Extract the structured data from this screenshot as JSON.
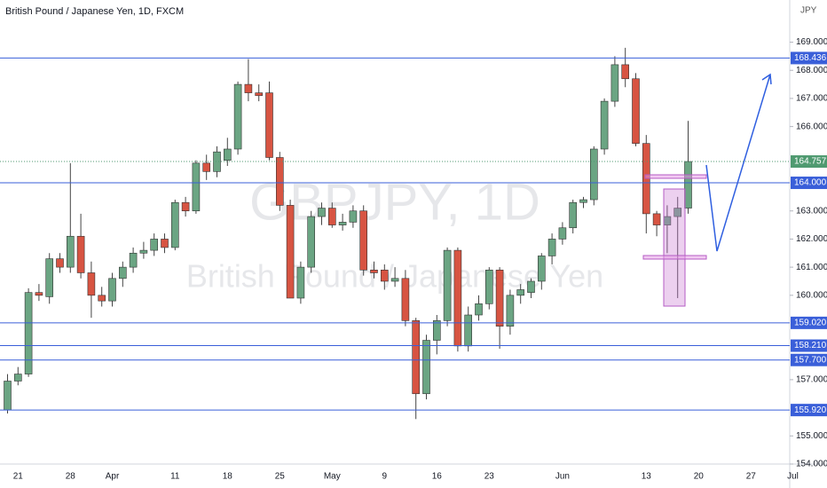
{
  "chart_data": {
    "type": "candlestick",
    "title": "British Pound / Japanese Yen, 1D, FXCM",
    "currency": "JPY",
    "watermark": "GBPJPY, 1D",
    "watermark_subtitle": "British Pound / Japanese Yen",
    "up_color": "#6ba583",
    "down_color": "#d75442",
    "categories": [
      null,
      "21",
      null,
      null,
      null,
      null,
      "28",
      null,
      null,
      null,
      "Apr",
      null,
      null,
      null,
      null,
      null,
      "11",
      null,
      null,
      null,
      null,
      "18",
      null,
      null,
      null,
      null,
      "25",
      null,
      null,
      null,
      null,
      "May",
      null,
      null,
      null,
      null,
      "9",
      null,
      null,
      null,
      null,
      "16",
      null,
      null,
      null,
      null,
      "23",
      null,
      null,
      null,
      null,
      null,
      null,
      "Jun",
      null,
      null,
      null,
      null,
      null,
      null,
      null,
      "13",
      null,
      null,
      null,
      null,
      "20",
      null,
      null,
      null,
      null,
      "27",
      null,
      null,
      null,
      "Jul"
    ],
    "open": [
      155.92,
      156.95,
      157.2,
      160.1,
      159.95,
      161.3,
      161.0,
      162.1,
      160.8,
      160.0,
      159.8,
      160.6,
      161.0,
      161.5,
      161.6,
      162.0,
      161.7,
      163.3,
      163.0,
      164.7,
      164.4,
      164.8,
      165.2,
      167.5,
      167.2,
      167.2,
      164.9,
      163.2,
      159.9,
      161.0,
      162.8,
      163.1,
      162.5,
      162.6,
      163.0,
      160.9,
      160.9,
      160.5,
      160.6,
      159.1,
      156.5,
      158.4,
      159.1,
      161.6,
      158.2,
      159.3,
      159.7,
      160.9,
      158.9,
      160.0,
      160.1,
      160.5,
      161.4,
      162.0,
      162.4,
      163.3,
      163.4,
      165.2,
      166.9,
      168.2,
      167.7,
      165.4,
      162.9,
      162.5,
      162.8,
      163.1,
      null,
      null,
      null,
      null,
      null,
      null,
      null,
      null,
      null,
      null
    ],
    "high": [
      157.2,
      157.45,
      160.25,
      160.4,
      161.5,
      161.5,
      164.7,
      162.9,
      161.2,
      160.3,
      160.8,
      161.2,
      161.7,
      161.9,
      162.2,
      162.2,
      163.4,
      163.5,
      164.8,
      165.0,
      165.3,
      165.6,
      167.6,
      168.4,
      167.5,
      167.6,
      165.1,
      163.4,
      161.2,
      163.0,
      163.3,
      163.3,
      162.9,
      163.2,
      163.2,
      161.2,
      161.1,
      161.0,
      160.9,
      159.2,
      158.6,
      159.3,
      161.7,
      161.7,
      159.6,
      160.0,
      161.0,
      161.0,
      160.2,
      160.4,
      160.6,
      161.5,
      162.2,
      162.6,
      163.4,
      163.5,
      165.3,
      167.0,
      168.5,
      168.8,
      167.9,
      165.7,
      163.0,
      163.2,
      163.5,
      166.2,
      null,
      null,
      null,
      null,
      null,
      null,
      null,
      null,
      null,
      null
    ],
    "low": [
      155.8,
      156.8,
      157.1,
      159.8,
      159.7,
      160.8,
      160.8,
      160.6,
      159.2,
      159.6,
      159.6,
      160.3,
      160.8,
      161.3,
      161.4,
      161.5,
      161.6,
      162.8,
      162.9,
      164.1,
      164.2,
      164.6,
      165.0,
      166.9,
      166.9,
      164.8,
      163.0,
      159.9,
      159.7,
      160.8,
      162.5,
      162.4,
      162.3,
      162.4,
      160.7,
      160.6,
      160.2,
      160.3,
      158.9,
      155.6,
      156.3,
      157.9,
      158.9,
      158.0,
      158.0,
      159.1,
      159.5,
      158.1,
      158.6,
      159.7,
      159.9,
      160.2,
      161.1,
      161.8,
      162.2,
      163.1,
      163.2,
      165.0,
      166.7,
      167.4,
      165.3,
      162.2,
      162.1,
      161.5,
      159.9,
      162.9,
      null,
      null,
      null,
      null,
      null,
      null,
      null,
      null,
      null,
      null
    ],
    "close": [
      156.95,
      157.2,
      160.1,
      160.0,
      161.3,
      161.0,
      162.1,
      160.8,
      160.0,
      159.8,
      160.6,
      161.0,
      161.5,
      161.6,
      162.0,
      161.7,
      163.3,
      163.0,
      164.7,
      164.4,
      165.1,
      165.2,
      167.5,
      167.2,
      167.1,
      164.9,
      163.2,
      159.9,
      161.0,
      162.8,
      163.1,
      162.5,
      162.6,
      163.0,
      160.9,
      160.8,
      160.5,
      160.6,
      159.1,
      156.5,
      158.4,
      159.1,
      161.6,
      158.2,
      159.3,
      159.7,
      160.9,
      158.9,
      160.0,
      160.2,
      160.5,
      161.4,
      162.0,
      162.4,
      163.3,
      163.4,
      165.2,
      166.9,
      168.2,
      167.7,
      165.4,
      162.9,
      162.5,
      162.8,
      163.1,
      164.757,
      null,
      null,
      null,
      null,
      null,
      null,
      null,
      null,
      null,
      null
    ],
    "ylim": [
      154.0,
      170.5
    ],
    "yticks": [
      {
        "value": 154,
        "label": "154.000"
      },
      {
        "value": 155,
        "label": "155.000"
      },
      {
        "value": 157,
        "label": "157.000"
      },
      {
        "value": 160,
        "label": "160.000"
      },
      {
        "value": 161,
        "label": "161.000"
      },
      {
        "value": 162,
        "label": "162.000"
      },
      {
        "value": 163,
        "label": "163.000"
      },
      {
        "value": 166,
        "label": "166.000"
      },
      {
        "value": 167,
        "label": "167.000"
      },
      {
        "value": 168,
        "label": "168.000"
      },
      {
        "value": 169,
        "label": "169.000"
      }
    ],
    "levels": [
      168.436,
      {
        "value": 164,
        "label": "164.000"
      },
      {
        "value": 159.02,
        "label": "159.020"
      },
      {
        "value": 158.21,
        "label": "158.210"
      },
      {
        "value": 157.7,
        "label": "157.700"
      },
      {
        "value": 155.92,
        "label": "155.920"
      }
    ],
    "level_color": "#3a5fd9",
    "last_price": 164.757,
    "last_price_color": "#4f9a70"
  }
}
